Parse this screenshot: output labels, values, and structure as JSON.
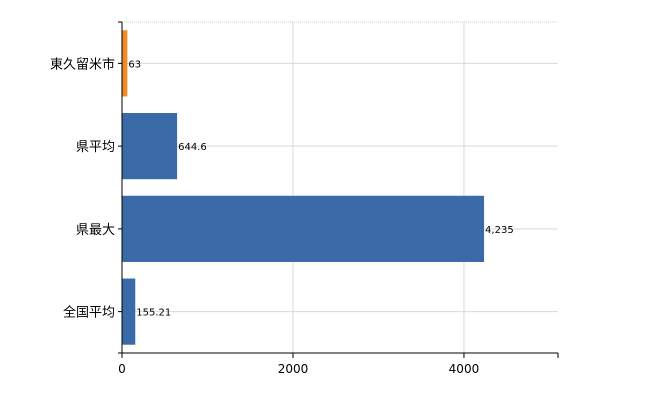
{
  "chart_data": {
    "type": "bar",
    "orientation": "horizontal",
    "categories": [
      "東久留米市",
      "県平均",
      "県最大",
      "全国平均"
    ],
    "values": [
      63,
      644.6,
      4235,
      155.21
    ],
    "value_labels": [
      "63",
      "644.6",
      "4,235",
      "155.21"
    ],
    "bar_colors": [
      "#f08c28",
      "#3b6aa8",
      "#3b6aa8",
      "#3b6aa8"
    ],
    "xlim": [
      0,
      5100
    ],
    "xticks": [
      0,
      2000,
      4000
    ],
    "xtick_labels": [
      "0",
      "2000",
      "4000"
    ],
    "grid": true,
    "legend": "none"
  }
}
